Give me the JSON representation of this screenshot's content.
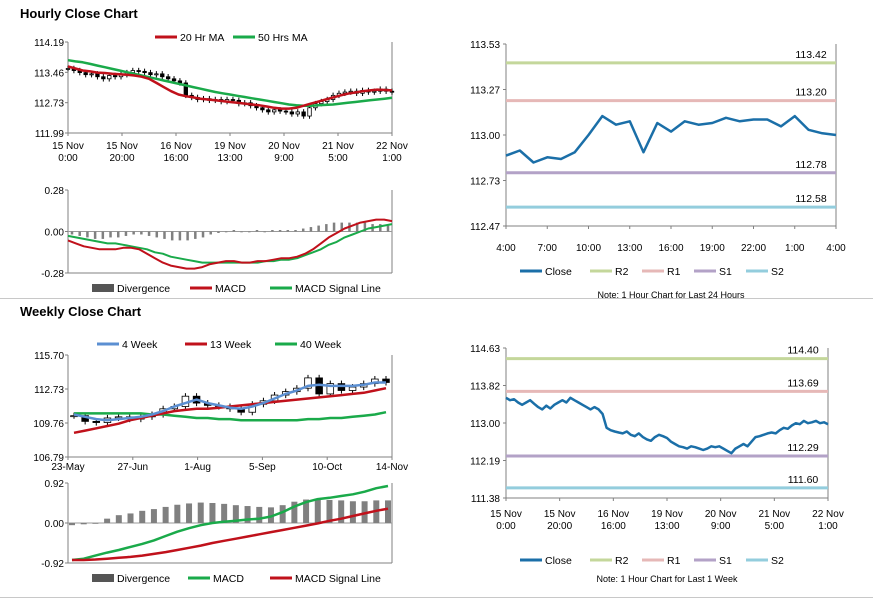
{
  "sections": {
    "hourly_title": "Hourly Close Chart",
    "weekly_title": "Weekly Close Chart"
  },
  "colors": {
    "ma_short": "#c0111b",
    "ma_long": "#1aaa4a",
    "ma_4w": "#5b8fd2",
    "close_line": "#1b6fa8",
    "r2": "#c4d79b",
    "r1": "#e6b8b7",
    "s1": "#b3a2c7",
    "s2": "#93cddd",
    "divergence": "#808080"
  },
  "chart_data": [
    {
      "id": "hourly_price",
      "type": "candlestick",
      "ylim": [
        111.99,
        114.19
      ],
      "yticks": [
        "114.19",
        "113.46",
        "112.73",
        "111.99"
      ],
      "xticks": [
        [
          "15 Nov",
          "0:00"
        ],
        [
          "15 Nov",
          "20:00"
        ],
        [
          "16 Nov",
          "16:00"
        ],
        [
          "19 Nov",
          "13:00"
        ],
        [
          "20 Nov",
          "9:00"
        ],
        [
          "21 Nov",
          "5:00"
        ],
        [
          "22 Nov",
          "1:00"
        ]
      ],
      "legend": [
        "20 Hr MA",
        "50 Hrs MA"
      ],
      "close": [
        113.55,
        113.5,
        113.45,
        113.4,
        113.42,
        113.35,
        113.3,
        113.38,
        113.35,
        113.4,
        113.45,
        113.5,
        113.48,
        113.45,
        113.4,
        113.42,
        113.35,
        113.3,
        113.25,
        113.2,
        112.9,
        112.85,
        112.8,
        112.82,
        112.78,
        112.8,
        112.75,
        112.8,
        112.78,
        112.7,
        112.72,
        112.65,
        112.6,
        112.55,
        112.5,
        112.55,
        112.52,
        112.5,
        112.45,
        112.5,
        112.4,
        112.6,
        112.7,
        112.75,
        112.8,
        112.9,
        112.95,
        112.98,
        113.0,
        112.95,
        113.02,
        112.98,
        113.0,
        113.05,
        113.0,
        112.98
      ],
      "ma_short": [
        113.6,
        113.55,
        113.5,
        113.48,
        113.45,
        113.44,
        113.42,
        113.41,
        113.4,
        113.38,
        113.35,
        113.3,
        113.2,
        113.1,
        113.0,
        112.92,
        112.88,
        112.85,
        112.82,
        112.8,
        112.78,
        112.76,
        112.74,
        112.72,
        112.7,
        112.68,
        112.66,
        112.63,
        112.6,
        112.58,
        112.58,
        112.6,
        112.65,
        112.7,
        112.75,
        112.8,
        112.85,
        112.9,
        112.94,
        112.97,
        113.0,
        113.02,
        113.04,
        113.03,
        113.02
      ],
      "ma_long": [
        113.75,
        113.72,
        113.7,
        113.66,
        113.62,
        113.58,
        113.54,
        113.5,
        113.46,
        113.42,
        113.38,
        113.34,
        113.3,
        113.26,
        113.22,
        113.18,
        113.14,
        113.1,
        113.06,
        113.02,
        112.98,
        112.95,
        112.92,
        112.89,
        112.86,
        112.83,
        112.8,
        112.77,
        112.74,
        112.71,
        112.68,
        112.66,
        112.65,
        112.65,
        112.66,
        112.67,
        112.68,
        112.7,
        112.72,
        112.74,
        112.76,
        112.78,
        112.8,
        112.82,
        112.84
      ]
    },
    {
      "id": "hourly_macd",
      "type": "line+bar",
      "ylim": [
        -0.28,
        0.28
      ],
      "yticks": [
        "0.28",
        "0.00",
        "-0.28"
      ],
      "legend": [
        "Divergence",
        "MACD",
        "MACD Signal Line"
      ],
      "macd": [
        -0.06,
        -0.08,
        -0.1,
        -0.11,
        -0.12,
        -0.12,
        -0.12,
        -0.11,
        -0.11,
        -0.12,
        -0.15,
        -0.18,
        -0.21,
        -0.23,
        -0.24,
        -0.25,
        -0.25,
        -0.24,
        -0.22,
        -0.21,
        -0.2,
        -0.2,
        -0.21,
        -0.21,
        -0.2,
        -0.2,
        -0.19,
        -0.18,
        -0.18,
        -0.17,
        -0.15,
        -0.12,
        -0.08,
        -0.04,
        -0.01,
        0.02,
        0.04,
        0.06,
        0.07,
        0.08,
        0.08,
        0.07
      ],
      "signal": [
        -0.03,
        -0.04,
        -0.05,
        -0.06,
        -0.07,
        -0.08,
        -0.08,
        -0.09,
        -0.1,
        -0.11,
        -0.12,
        -0.14,
        -0.15,
        -0.17,
        -0.18,
        -0.19,
        -0.2,
        -0.21,
        -0.21,
        -0.21,
        -0.21,
        -0.21,
        -0.21,
        -0.21,
        -0.21,
        -0.2,
        -0.2,
        -0.19,
        -0.19,
        -0.18,
        -0.16,
        -0.14,
        -0.12,
        -0.09,
        -0.07,
        -0.04,
        -0.02,
        0.0,
        0.02,
        0.03,
        0.04,
        0.05
      ],
      "divergence": [
        -0.02,
        -0.03,
        -0.04,
        -0.05,
        -0.05,
        -0.04,
        -0.04,
        -0.03,
        -0.02,
        -0.02,
        -0.03,
        -0.04,
        -0.05,
        -0.06,
        -0.06,
        -0.06,
        -0.05,
        -0.04,
        -0.02,
        -0.01,
        0.0,
        0.01,
        0.0,
        0.0,
        0.01,
        0.0,
        0.01,
        0.01,
        0.01,
        0.01,
        0.02,
        0.03,
        0.04,
        0.05,
        0.06,
        0.06,
        0.06,
        0.06,
        0.06,
        0.05,
        0.05,
        0.04
      ]
    },
    {
      "id": "hourly_sr",
      "type": "line",
      "ylim": [
        112.47,
        113.53
      ],
      "yticks": [
        "113.53",
        "113.27",
        "113.00",
        "112.73",
        "112.47"
      ],
      "xticks": [
        "4:00",
        "7:00",
        "10:00",
        "13:00",
        "16:00",
        "19:00",
        "22:00",
        "1:00",
        "4:00"
      ],
      "levels": [
        {
          "name": "R2",
          "value": 113.42,
          "label": "113.42"
        },
        {
          "name": "R1",
          "value": 113.2,
          "label": "113.20"
        },
        {
          "name": "S1",
          "value": 112.78,
          "label": "112.78"
        },
        {
          "name": "S2",
          "value": 112.58,
          "label": "112.58"
        }
      ],
      "close": [
        112.88,
        112.91,
        112.84,
        112.87,
        112.86,
        112.9,
        113.0,
        113.11,
        113.06,
        113.08,
        112.9,
        113.07,
        113.02,
        113.08,
        113.06,
        113.07,
        113.1,
        113.08,
        113.09,
        113.09,
        113.05,
        113.11,
        113.03,
        113.01,
        113.0
      ],
      "legend": [
        "Close",
        "R2",
        "R1",
        "S1",
        "S2"
      ],
      "note": "Note: 1 Hour Chart for Last 24 Hours"
    },
    {
      "id": "weekly_price",
      "type": "candlestick",
      "ylim": [
        106.79,
        115.7
      ],
      "yticks": [
        "115.70",
        "112.73",
        "109.76",
        "106.79"
      ],
      "xticks": [
        "23-May",
        "27-Jun",
        "1-Aug",
        "5-Sep",
        "10-Oct",
        "14-Nov"
      ],
      "legend": [
        "4 Week",
        "13 Week",
        "40 Week"
      ],
      "close": [
        110.4,
        109.9,
        109.8,
        110.2,
        110.3,
        110.1,
        110.3,
        110.5,
        111.0,
        111.2,
        112.1,
        111.5,
        111.3,
        111.2,
        111.0,
        110.7,
        111.4,
        111.7,
        112.2,
        112.5,
        112.8,
        113.7,
        112.3,
        113.2,
        112.6,
        112.9,
        113.2,
        113.6,
        113.3
      ],
      "ma_4w": [
        110.5,
        110.3,
        110.1,
        110.0,
        110.1,
        110.2,
        110.3,
        110.5,
        110.8,
        111.2,
        111.5,
        111.8,
        111.5,
        111.3,
        111.1,
        111.0,
        111.2,
        111.5,
        111.9,
        112.3,
        112.6,
        113.0,
        113.1,
        113.0,
        113.0,
        113.0,
        113.1,
        113.3,
        113.3
      ],
      "ma_13w": [
        108.9,
        109.1,
        109.3,
        109.5,
        109.7,
        110.0,
        110.2,
        110.4,
        110.6,
        110.8,
        110.9,
        111.0,
        111.0,
        111.1,
        111.2,
        111.3,
        111.4,
        111.5,
        111.6,
        111.7,
        111.8,
        111.9,
        112.0,
        112.1,
        112.2,
        112.3,
        112.4,
        112.6,
        112.8
      ],
      "ma_40w": [
        110.6,
        110.6,
        110.6,
        110.6,
        110.6,
        110.6,
        110.6,
        110.5,
        110.5,
        110.4,
        110.3,
        110.2,
        110.2,
        110.1,
        110.1,
        110.0,
        110.0,
        110.0,
        110.0,
        110.0,
        110.0,
        110.1,
        110.1,
        110.2,
        110.2,
        110.3,
        110.4,
        110.5,
        110.7
      ]
    },
    {
      "id": "weekly_macd",
      "type": "line+bar",
      "ylim": [
        -0.92,
        0.92
      ],
      "yticks": [
        "0.92",
        "0.00",
        "-0.92"
      ],
      "legend": [
        "Divergence",
        "MACD",
        "MACD Signal Line"
      ],
      "macd": [
        -0.85,
        -0.82,
        -0.75,
        -0.68,
        -0.62,
        -0.55,
        -0.48,
        -0.4,
        -0.3,
        -0.2,
        -0.12,
        -0.05,
        0.0,
        0.03,
        0.05,
        0.08,
        0.1,
        0.15,
        0.25,
        0.38,
        0.48,
        0.55,
        0.58,
        0.62,
        0.66,
        0.72,
        0.8,
        0.85
      ],
      "signal": [
        -0.85,
        -0.85,
        -0.84,
        -0.82,
        -0.8,
        -0.78,
        -0.75,
        -0.71,
        -0.67,
        -0.62,
        -0.57,
        -0.52,
        -0.46,
        -0.41,
        -0.36,
        -0.31,
        -0.26,
        -0.21,
        -0.16,
        -0.11,
        -0.06,
        -0.01,
        0.05,
        0.1,
        0.16,
        0.22,
        0.28,
        0.33
      ],
      "divergence": [
        -0.05,
        -0.03,
        0.0,
        0.1,
        0.18,
        0.22,
        0.28,
        0.32,
        0.37,
        0.42,
        0.45,
        0.47,
        0.46,
        0.44,
        0.41,
        0.39,
        0.37,
        0.36,
        0.41,
        0.49,
        0.54,
        0.56,
        0.53,
        0.52,
        0.5,
        0.5,
        0.52,
        0.52
      ]
    },
    {
      "id": "weekly_sr",
      "type": "line",
      "ylim": [
        111.38,
        114.63
      ],
      "yticks": [
        "114.63",
        "113.82",
        "113.00",
        "112.19",
        "111.38"
      ],
      "xticks": [
        [
          "15 Nov",
          "0:00"
        ],
        [
          "15 Nov",
          "20:00"
        ],
        [
          "16 Nov",
          "16:00"
        ],
        [
          "19 Nov",
          "13:00"
        ],
        [
          "20 Nov",
          "9:00"
        ],
        [
          "21 Nov",
          "5:00"
        ],
        [
          "22 Nov",
          "1:00"
        ]
      ],
      "levels": [
        {
          "name": "R2",
          "value": 114.4,
          "label": "114.40"
        },
        {
          "name": "R1",
          "value": 113.69,
          "label": "113.69"
        },
        {
          "name": "S1",
          "value": 112.29,
          "label": "112.29"
        },
        {
          "name": "S2",
          "value": 111.6,
          "label": "111.60"
        }
      ],
      "close": [
        113.55,
        113.5,
        113.52,
        113.45,
        113.4,
        113.45,
        113.5,
        113.42,
        113.35,
        113.3,
        113.38,
        113.32,
        113.4,
        113.45,
        113.5,
        113.45,
        113.55,
        113.5,
        113.45,
        113.4,
        113.35,
        113.3,
        113.35,
        113.3,
        113.2,
        112.9,
        112.85,
        112.82,
        112.8,
        112.78,
        112.82,
        112.75,
        112.72,
        112.78,
        112.7,
        112.65,
        112.62,
        112.7,
        112.75,
        112.72,
        112.68,
        112.6,
        112.55,
        112.5,
        112.48,
        112.45,
        112.5,
        112.48,
        112.45,
        112.42,
        112.45,
        112.5,
        112.48,
        112.5,
        112.45,
        112.4,
        112.35,
        112.45,
        112.5,
        112.55,
        112.5,
        112.6,
        112.7,
        112.72,
        112.75,
        112.78,
        112.8,
        112.78,
        112.85,
        112.9,
        112.88,
        112.95,
        113.0,
        112.98,
        113.05,
        113.0,
        113.02,
        113.05,
        113.0,
        113.02,
        112.98
      ],
      "legend": [
        "Close",
        "R2",
        "R1",
        "S1",
        "S2"
      ],
      "note": "Note: 1 Hour Chart for Last 1 Week"
    }
  ]
}
